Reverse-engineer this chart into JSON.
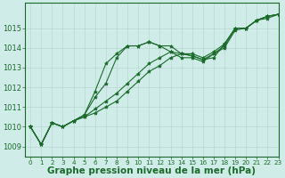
{
  "background_color": "#d0ece8",
  "grid_color": "#b8d8d0",
  "line_color": "#1a6b2a",
  "marker": "*",
  "marker_size": 3,
  "xlabel": "Graphe pression niveau de la mer (hPa)",
  "xlabel_fontsize": 7.5,
  "xlim": [
    -0.5,
    23
  ],
  "ylim": [
    1008.5,
    1016.3
  ],
  "yticks": [
    1009,
    1010,
    1011,
    1012,
    1013,
    1014,
    1015
  ],
  "xticks": [
    0,
    1,
    2,
    3,
    4,
    5,
    6,
    7,
    8,
    9,
    10,
    11,
    12,
    13,
    14,
    15,
    16,
    17,
    18,
    19,
    20,
    21,
    22,
    23
  ],
  "series": [
    [
      1010.0,
      1009.1,
      1010.2,
      1010.0,
      1010.3,
      1010.5,
      1010.7,
      1011.0,
      1011.3,
      1011.8,
      1012.3,
      1012.8,
      1013.1,
      1013.5,
      1013.7,
      1013.7,
      1013.5,
      1013.8,
      1014.2,
      1015.0,
      1015.0,
      1015.4,
      1015.6,
      1015.7
    ],
    [
      1010.0,
      1009.1,
      1010.2,
      1010.0,
      1010.3,
      1010.5,
      1010.9,
      1011.3,
      1011.7,
      1012.2,
      1012.7,
      1013.2,
      1013.5,
      1013.8,
      1013.7,
      1013.6,
      1013.4,
      1013.7,
      1014.1,
      1015.0,
      1015.0,
      1015.4,
      1015.6,
      1015.7
    ],
    [
      1010.0,
      1009.1,
      1010.2,
      1010.0,
      1010.3,
      1010.6,
      1011.5,
      1012.2,
      1013.5,
      1014.1,
      1014.1,
      1014.3,
      1014.1,
      1014.1,
      1013.7,
      1013.6,
      1013.4,
      1013.5,
      1014.2,
      1015.0,
      1015.0,
      1015.4,
      1015.6,
      1015.7
    ],
    [
      1010.0,
      1009.1,
      1010.2,
      1010.0,
      1010.3,
      1010.6,
      1011.8,
      1013.2,
      1013.7,
      1014.1,
      1014.1,
      1014.3,
      1014.1,
      1013.8,
      1013.5,
      1013.5,
      1013.3,
      1013.7,
      1014.0,
      1014.9,
      1015.0,
      1015.4,
      1015.5,
      1015.7
    ]
  ]
}
